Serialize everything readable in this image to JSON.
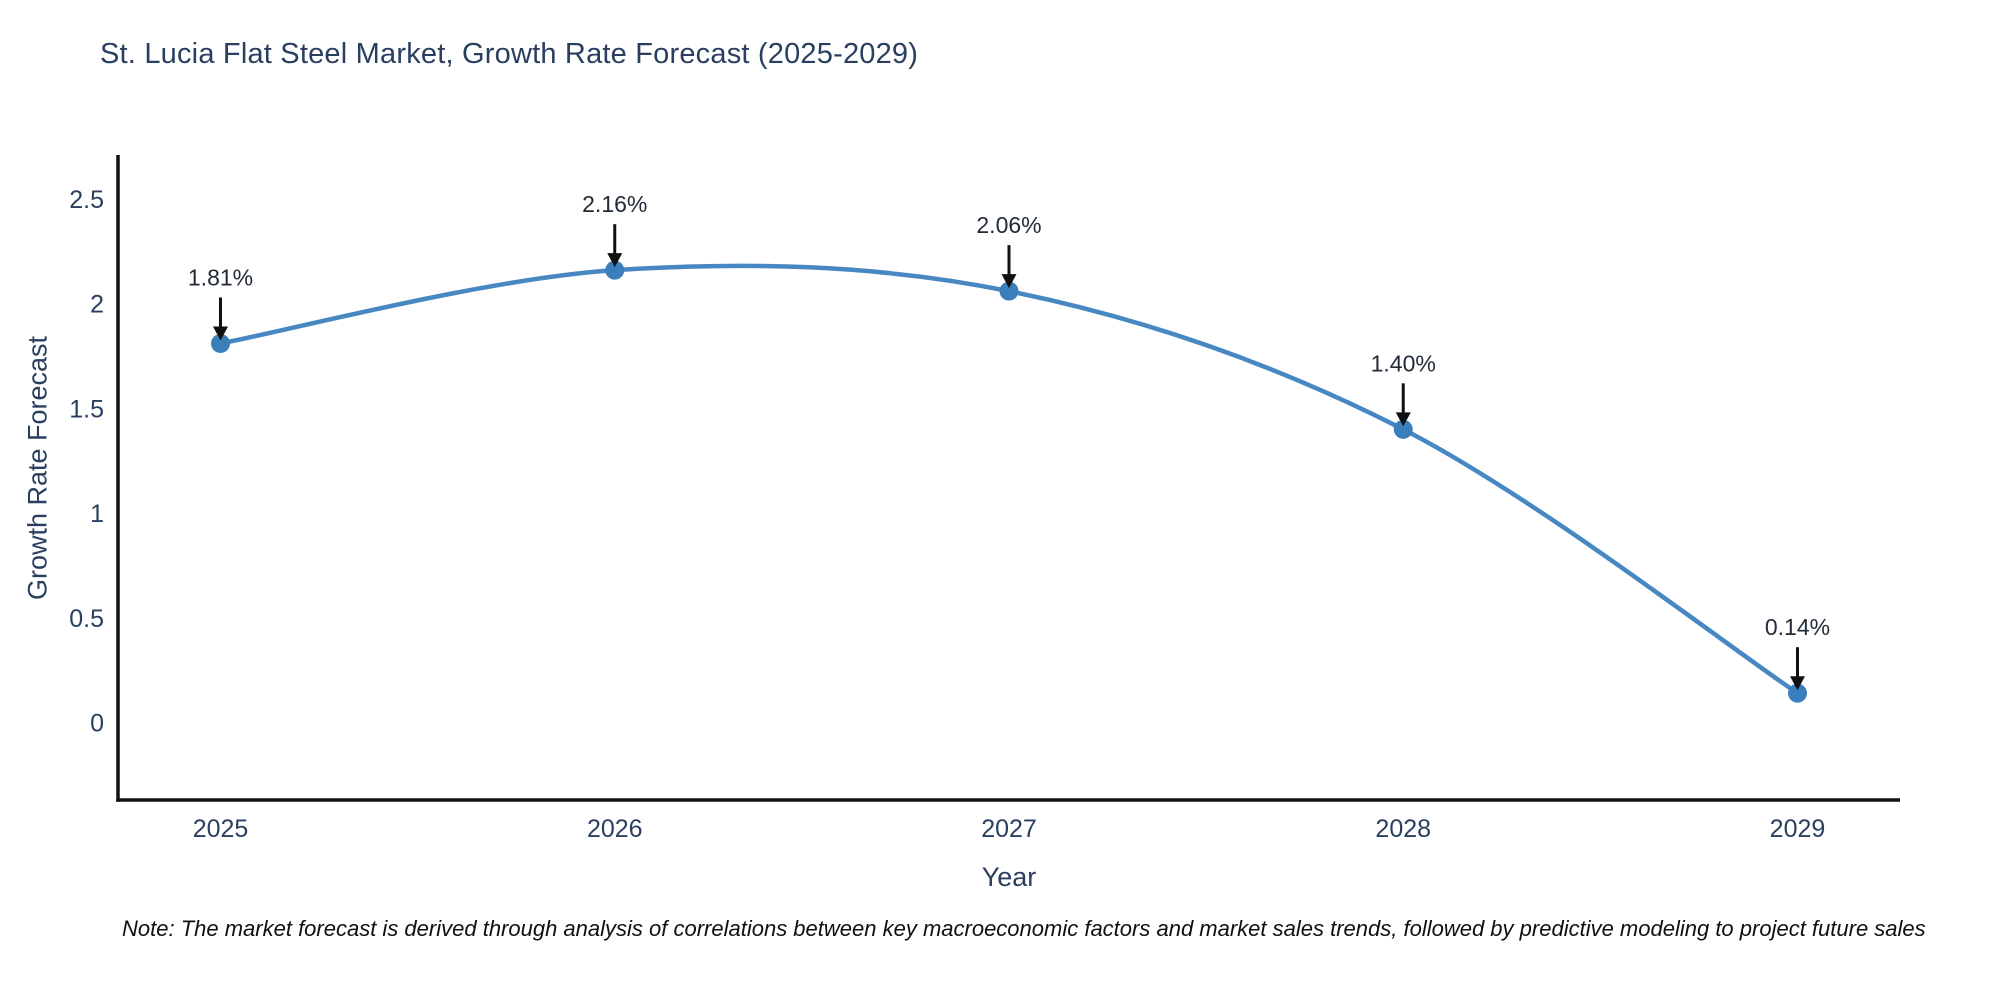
{
  "chart_data": {
    "type": "line",
    "title": "St. Lucia Flat Steel Market, Growth Rate Forecast (2025-2029)",
    "xlabel": "Year",
    "ylabel": "Growth Rate Forecast",
    "x": [
      2025,
      2026,
      2027,
      2028,
      2029
    ],
    "series": [
      {
        "name": "Growth Rate Forecast",
        "values": [
          1.81,
          2.16,
          2.06,
          1.4,
          0.14
        ]
      }
    ],
    "point_labels": [
      "1.81%",
      "2.16%",
      "2.06%",
      "1.40%",
      "0.14%"
    ],
    "x_tick_labels": [
      "2025",
      "2026",
      "2027",
      "2028",
      "2029"
    ],
    "y_ticks": [
      0,
      0.5,
      1,
      1.5,
      2,
      2.5
    ],
    "y_tick_labels": [
      "0",
      "0.5",
      "1",
      "1.5",
      "2",
      "2.5"
    ],
    "xlim": [
      2024.74,
      2029.26
    ],
    "ylim": [
      -0.37,
      2.71
    ],
    "line_shape": "spline",
    "grid": false,
    "legend": false,
    "colors": {
      "line": "#4788c3",
      "marker": "#3a7ebb",
      "axis": "#111111",
      "tick_text": "#2a3f5f",
      "annotation_text": "#222b38",
      "arrow": "#111111"
    }
  },
  "note": "Note: The market forecast is derived through analysis of correlations between key macroeconomic factors and market sales trends, followed by predictive modeling to project future sales"
}
